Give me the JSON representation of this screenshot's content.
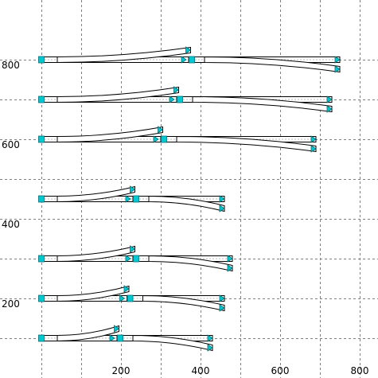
{
  "x_axis": {
    "min": 0,
    "max": 850,
    "grid": true,
    "labels": [
      {
        "value": 200,
        "text": "200"
      },
      {
        "value": 400,
        "text": "400"
      },
      {
        "value": 600,
        "text": "600"
      },
      {
        "value": 800,
        "text": "800"
      }
    ],
    "gridlines": [
      0,
      100,
      200,
      300,
      400,
      500,
      600,
      700,
      800
    ]
  },
  "y_axis": {
    "min": 0,
    "max": 850,
    "grid": true,
    "labels": [
      {
        "value": 200,
        "text": "200"
      },
      {
        "value": 400,
        "text": "400"
      },
      {
        "value": 600,
        "text": "600"
      },
      {
        "value": 800,
        "text": "800"
      }
    ],
    "gridlines": [
      100,
      200,
      300,
      400,
      500,
      600,
      700,
      800
    ]
  },
  "colors": {
    "background": "#ffffff",
    "grid": "#808080",
    "track_fill": "#ffffff",
    "track_stroke": "#000000",
    "joint": "#00c8d2"
  },
  "turnouts": [
    {
      "y": 100,
      "start": 0,
      "split": 190,
      "straight_end": 430,
      "diverge_left_end": 195,
      "diverge_right_end": 430
    },
    {
      "y": 200,
      "start": 0,
      "split": 215,
      "straight_end": 460,
      "diverge_left_end": 220,
      "diverge_right_end": 460
    },
    {
      "y": 300,
      "start": 0,
      "split": 230,
      "straight_end": 480,
      "diverge_left_end": 235,
      "diverge_right_end": 480
    },
    {
      "y": 450,
      "start": 0,
      "split": 230,
      "straight_end": 460,
      "diverge_left_end": 235,
      "diverge_right_end": 460
    },
    {
      "y": 600,
      "start": 0,
      "split": 300,
      "straight_end": 690,
      "diverge_left_end": 305,
      "diverge_right_end": 690
    },
    {
      "y": 700,
      "start": 0,
      "split": 340,
      "straight_end": 730,
      "diverge_left_end": 345,
      "diverge_right_end": 730
    },
    {
      "y": 800,
      "start": 0,
      "split": 370,
      "straight_end": 750,
      "diverge_left_end": 375,
      "diverge_right_end": 750
    }
  ]
}
